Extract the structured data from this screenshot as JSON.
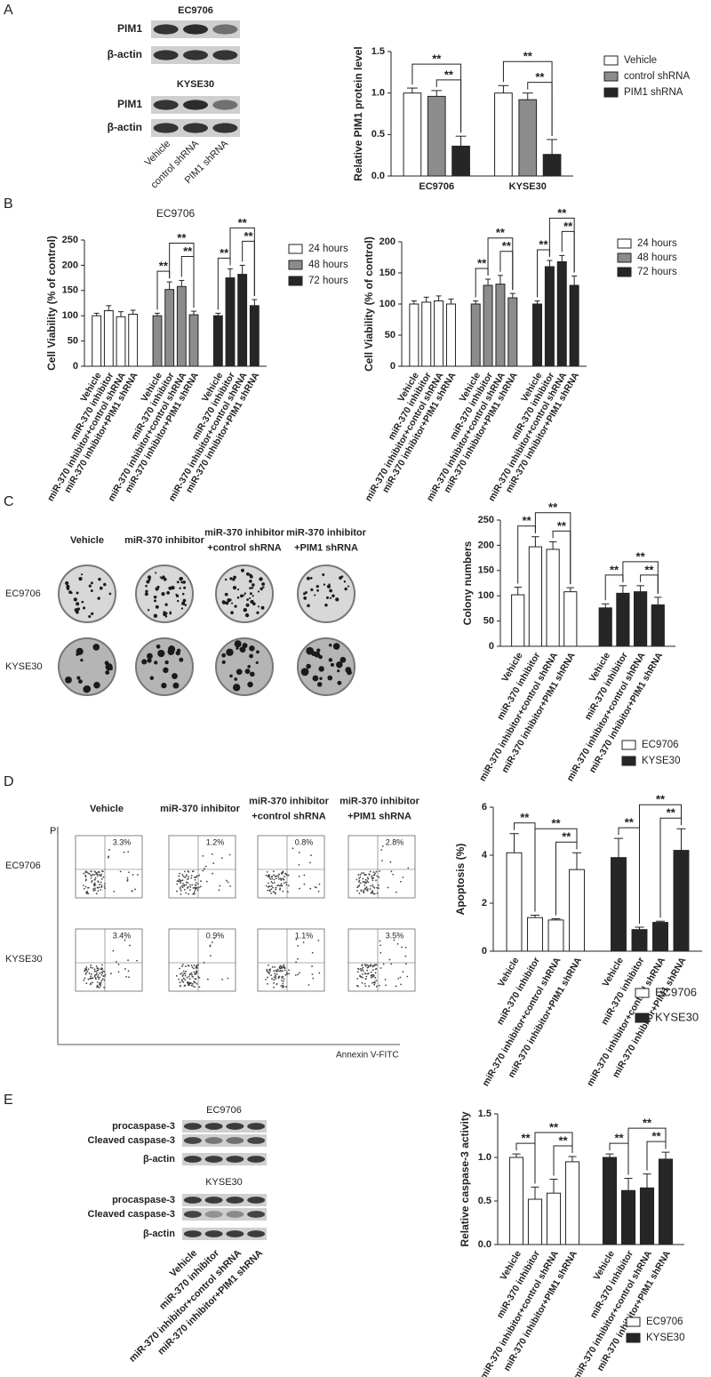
{
  "panel_labels": [
    "A",
    "B",
    "C",
    "D",
    "E"
  ],
  "blots_a": {
    "cell_lines": [
      "EC9706",
      "KYSE30"
    ],
    "rows": [
      "PIM1",
      "β-actin"
    ],
    "lanes": [
      "Vehicle",
      "control shRNA",
      "PIM1 shRNA"
    ]
  },
  "colony_c": {
    "columns": [
      [
        "Vehicle"
      ],
      [
        "miR-370 inhibitor"
      ],
      [
        "miR-370 inhibitor",
        "+control shRNA"
      ],
      [
        "miR-370 inhibitor",
        "+PIM1 shRNA"
      ]
    ],
    "rows": [
      "EC9706",
      "KYSE30"
    ]
  },
  "flow_d": {
    "columns": [
      [
        "Vehicle"
      ],
      [
        "miR-370 inhibitor"
      ],
      [
        "miR-370 inhibitor",
        "+control shRNA"
      ],
      [
        "miR-370 inhibitor",
        "+PIM1 shRNA"
      ]
    ],
    "rows": [
      "EC9706",
      "KYSE30"
    ],
    "percentages": [
      [
        "3.3%",
        "1.2%",
        "0.8%",
        "2.8%"
      ],
      [
        "3.4%",
        "0.9%",
        "1.1%",
        "3.5%"
      ]
    ],
    "y_axis": "PI",
    "x_axis": "Annexin V-FITC"
  },
  "blots_e": {
    "cell_lines": [
      "EC9706",
      "KYSE30"
    ],
    "rows": [
      "procaspase-3",
      "Cleaved caspase-3",
      "β-actin"
    ],
    "lanes": [
      "Vehicle",
      "miR-370 inhibitor",
      "miR-370 inhibitor+control shRNA",
      "miR-370 inhibitor+PIM1 shRNA"
    ]
  },
  "chart_data": [
    {
      "type": "bar",
      "ylabel": "Relative PIM1 protein level",
      "categories": [
        "EC9706",
        "KYSE30"
      ],
      "series": [
        {
          "name": "Vehicle",
          "color": "#ffffff",
          "values": [
            1.0,
            1.0
          ],
          "errors": [
            0.06,
            0.09
          ]
        },
        {
          "name": "control shRNA",
          "color": "#8c8c8c",
          "values": [
            0.96,
            0.92
          ],
          "errors": [
            0.07,
            0.08
          ]
        },
        {
          "name": "PIM1 shRNA",
          "color": "#262626",
          "values": [
            0.36,
            0.26
          ],
          "errors": [
            0.12,
            0.18
          ]
        }
      ],
      "ylim": [
        0,
        1.5
      ],
      "yticks": [
        {
          "value": 0,
          "label": "0.0"
        },
        0.5,
        {
          "value": 1,
          "label": "1.0"
        },
        1.5
      ],
      "annotations": [
        "**",
        "**",
        "**",
        "**"
      ]
    },
    {
      "type": "bar",
      "title": "EC9706",
      "ylabel": "Cell Viability (% of control)",
      "categories": [
        "Vehicle",
        "miR-370 inhibitor",
        "miR-370 inhibitor+control shRNA",
        "miR-370 inhibitor+PIM1 shRNA"
      ],
      "series": [
        {
          "name": "24 hours",
          "color": "#ffffff",
          "values": [
            100,
            110,
            98,
            103
          ],
          "errors": [
            5,
            10,
            10,
            8
          ]
        },
        {
          "name": "48 hours",
          "color": "#8c8c8c",
          "values": [
            100,
            152,
            158,
            102
          ],
          "errors": [
            5,
            15,
            12,
            7
          ]
        },
        {
          "name": "72 hours",
          "color": "#262626",
          "values": [
            100,
            175,
            182,
            120
          ],
          "errors": [
            5,
            18,
            18,
            12
          ]
        }
      ],
      "ylim": [
        0,
        250
      ],
      "yticks": [
        0,
        50,
        100,
        150,
        200,
        250
      ],
      "annotations": [
        "**",
        "**",
        "**",
        "**",
        "**",
        "**"
      ]
    },
    {
      "type": "bar",
      "ylabel": "Cell Viability (% of control)",
      "categories": [
        "Vehicle",
        "miR-370 inhibitor",
        "miR-370 inhibitor+control shRNA",
        "miR-370 inhibitor+PIM1 shRNA"
      ],
      "series": [
        {
          "name": "24 hours",
          "color": "#ffffff",
          "values": [
            100,
            103,
            105,
            100
          ],
          "errors": [
            5,
            8,
            8,
            8
          ]
        },
        {
          "name": "48 hours",
          "color": "#8c8c8c",
          "values": [
            100,
            130,
            132,
            110
          ],
          "errors": [
            5,
            10,
            14,
            7
          ]
        },
        {
          "name": "72 hours",
          "color": "#262626",
          "values": [
            100,
            160,
            168,
            130
          ],
          "errors": [
            5,
            10,
            10,
            15
          ]
        }
      ],
      "ylim": [
        0,
        200
      ],
      "yticks": [
        0,
        50,
        100,
        150,
        200
      ],
      "annotations": [
        "**",
        "**",
        "**",
        "**",
        "**",
        "**"
      ]
    },
    {
      "type": "bar",
      "ylabel": "Colony numbers",
      "categories": [
        "Vehicle",
        "miR-370 inhibitor",
        "miR-370 inhibitor+control shRNA",
        "miR-370 inhibitor+PIM1 shRNA"
      ],
      "series": [
        {
          "name": "EC9706",
          "color": "#ffffff",
          "values": [
            102,
            197,
            192,
            108
          ],
          "errors": [
            15,
            20,
            15,
            8
          ]
        },
        {
          "name": "KYSE30",
          "color": "#262626",
          "values": [
            76,
            105,
            108,
            82
          ],
          "errors": [
            8,
            15,
            12,
            15
          ]
        }
      ],
      "ylim": [
        0,
        250
      ],
      "yticks": [
        0,
        50,
        100,
        150,
        200,
        250
      ],
      "annotations": [
        "**",
        "**",
        "**",
        "**",
        "**",
        "**"
      ]
    },
    {
      "type": "bar",
      "ylabel": "Apoptosis (%)",
      "categories": [
        "Vehicle",
        "miR-370 inhibitor",
        "miR-370 inhibitor+control shRNA",
        "miR-370 inhibitor+PIM1 shRNA"
      ],
      "series": [
        {
          "name": "EC9706",
          "color": "#ffffff",
          "values": [
            4.1,
            1.4,
            1.3,
            3.4
          ],
          "errors": [
            0.8,
            0.1,
            0.05,
            0.7
          ]
        },
        {
          "name": "KYSE30",
          "color": "#262626",
          "values": [
            3.9,
            0.9,
            1.2,
            4.2
          ],
          "errors": [
            0.8,
            0.1,
            0.05,
            0.9
          ]
        }
      ],
      "ylim": [
        0,
        6
      ],
      "yticks": [
        0,
        2,
        4,
        6
      ],
      "annotations": [
        "**",
        "**",
        "**",
        "**",
        "**",
        "**"
      ]
    },
    {
      "type": "bar",
      "ylabel": "Relative caspase-3 activity",
      "categories": [
        "Vehicle",
        "miR-370 inhibitor",
        "miR-370 inhibitor+control shRNA",
        "miR-370 inhibitor+PIM1 shRNA"
      ],
      "series": [
        {
          "name": "EC9706",
          "color": "#ffffff",
          "values": [
            1.0,
            0.52,
            0.59,
            0.95
          ],
          "errors": [
            0.04,
            0.14,
            0.16,
            0.06
          ]
        },
        {
          "name": "KYSE30",
          "color": "#262626",
          "values": [
            1.0,
            0.62,
            0.65,
            0.98
          ],
          "errors": [
            0.04,
            0.14,
            0.16,
            0.08
          ]
        }
      ],
      "ylim": [
        0,
        1.5
      ],
      "yticks": [
        {
          "value": 0,
          "label": "0.0"
        },
        0.5,
        {
          "value": 1,
          "label": "1.0"
        },
        1.5
      ],
      "annotations": [
        "**",
        "**",
        "**",
        "**",
        "**",
        "**"
      ]
    }
  ]
}
